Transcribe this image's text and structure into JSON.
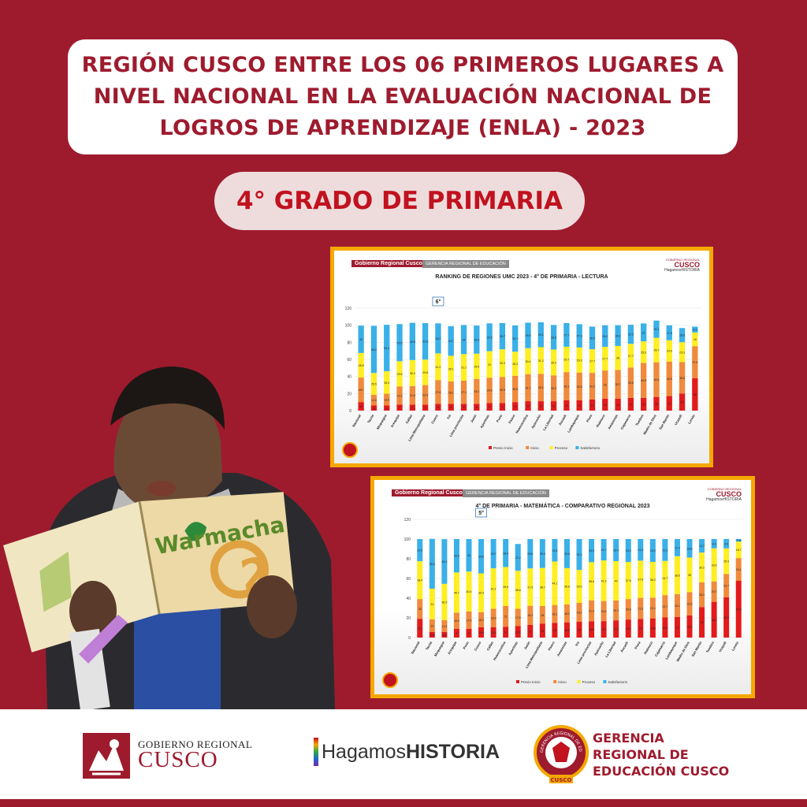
{
  "title": {
    "line1": "REGIÓN CUSCO ENTRE LOS 06 PRIMEROS LUGARES A",
    "line2": "NIVEL NACIONAL EN LA EVALUACIÓN NACIONAL DE",
    "line3": "LOGROS DE APRENDIZAJE   (ENLA) - 2023"
  },
  "grade": "4° GRADO DE PRIMARIA",
  "photo": {
    "book_title": "Warmacha",
    "book_number": "2"
  },
  "colors": {
    "brand_red": "#9e1b2e",
    "accent_orange": "#f5a800",
    "previo": "#e21b1b",
    "inicio": "#f08a3c",
    "proceso": "#ffee22",
    "satisfactorio": "#3ab0e8"
  },
  "chart_data": [
    {
      "type": "bar",
      "stacked": true,
      "header_org": "Gobierno Regional Cusco",
      "header_dept": "GERENCIA REGIONAL DE EDUCACIÓN",
      "logo": {
        "small": "GOBIERNO REGIONAL",
        "big": "CUSCO",
        "tag": "HagamosHISTORIA"
      },
      "title": "RANKING DE REGIONES UMC 2023 - 4° DE PRIMARIA - LECTURA",
      "rank_label": "6°",
      "rank_index": 6,
      "ylim": [
        0,
        120
      ],
      "yticks": [
        "0",
        "20",
        "40",
        "60",
        "80",
        "100",
        "120"
      ],
      "legend": [
        "Previo Inicio",
        "Inicio",
        "Proceso",
        "Satisfactorio"
      ],
      "categories": [
        "Nacional",
        "Tacna",
        "Moquegua",
        "Arequipa",
        "Callao",
        "Lima Metropolitana",
        "Cusco",
        "Ica",
        "Lima provincias",
        "Junín",
        "Apurímac",
        "Puno",
        "Pasco",
        "Huancavelica",
        "Ayacucho",
        "La Libertad",
        "Áncash",
        "Lambayeque",
        "Piura",
        "Huánuco",
        "Amazonas",
        "Cajamarca",
        "Tumbes",
        "Madre de Dios",
        "San Martín",
        "Ucayali",
        "Loreto"
      ],
      "series": [
        {
          "name": "Previo Inicio",
          "values": [
            10,
            6,
            6,
            7,
            7,
            7,
            8,
            8,
            8,
            8,
            9,
            9,
            10,
            11,
            11,
            11,
            12,
            12,
            13,
            14,
            14,
            15,
            15,
            16,
            17,
            20,
            38
          ]
        },
        {
          "name": "Inicio",
          "values": [
            28.7,
            12.6,
            13.8,
            21.2,
            21.8,
            22.9,
            27.8,
            26.1,
            27.1,
            29.1,
            29.6,
            30.5,
            30.8,
            31.7,
            32.1,
            30.3,
            33.1,
            32.6,
            31.2,
            33,
            33.7,
            35.5,
            40.8,
            40.6,
            40.5,
            36.8,
            37.5
          ]
        },
        {
          "name": "Proceso",
          "values": [
            28.8,
            25.5,
            26.3,
            29.6,
            30.4,
            29.8,
            31.2,
            30.1,
            31.1,
            29.6,
            31,
            32.3,
            28.2,
            30.4,
            31.2,
            30.2,
            29.7,
            29.3,
            27.7,
            27.7,
            28,
            27.7,
            25.3,
            28.7,
            24.9,
            23.3,
            16
          ]
        },
        {
          "name": "Satisfactorio",
          "values": [
            32,
            55.2,
            54.4,
            43.5,
            43.6,
            42.8,
            35.2,
            34.7,
            34,
            32.9,
            32.6,
            30.7,
            30.7,
            29.9,
            29.1,
            28.8,
            27.7,
            27.3,
            26.5,
            25.2,
            24.3,
            22.3,
            21,
            20.1,
            17.5,
            16.6,
            6.9
          ]
        }
      ]
    },
    {
      "type": "bar",
      "stacked": true,
      "header_org": "Gobierno Regional Cusco",
      "header_dept": "GERENCIA REGIONAL DE EDUCACIÓN",
      "logo": {
        "small": "GOBIERNO REGIONAL",
        "big": "CUSCO",
        "tag": "HagamosHISTORIA"
      },
      "title": "4° DE PRIMARIA - MATEMÁTICA - COMPARATIVO REGIONAL 2023",
      "rank_label": "5°",
      "rank_index": 5,
      "ylim": [
        0,
        120
      ],
      "yticks": [
        "0",
        "20",
        "40",
        "60",
        "80",
        "100",
        "120"
      ],
      "legend": [
        "Previo Inicio",
        "Inicio",
        "Proceso",
        "Satisfactorio"
      ],
      "categories": [
        "Nacional",
        "Tacna",
        "Moquegua",
        "Arequipa",
        "Puno",
        "Cusco",
        "Callao",
        "Huancavelica",
        "Apurímac",
        "Junín",
        "Lima Metropolitana",
        "Pasco",
        "Amazonas",
        "Ica",
        "Lima provincias",
        "Ayacucho",
        "La Libertad",
        "Áncash",
        "Piura",
        "Huánuco",
        "Cajamarca",
        "Lambayeque",
        "Madre de Dios",
        "San Martín",
        "Tumbes",
        "Ucayali",
        "Loreto"
      ],
      "series": [
        {
          "name": "Previo Inicio",
          "values": [
            19.1,
            5.6,
            5.8,
            9,
            9,
            10.6,
            10.6,
            11,
            11.6,
            13,
            14,
            15,
            15.5,
            16,
            16.6,
            16.7,
            17.5,
            18.3,
            19,
            19.5,
            20.4,
            21,
            22.6,
            31,
            36.3,
            40.9,
            57.6
          ]
        },
        {
          "name": "Inicio",
          "values": [
            20,
            13,
            11.9,
            16.4,
            17.6,
            15.2,
            18.6,
            21,
            17.6,
            19.3,
            18,
            18.1,
            18.2,
            19.2,
            21.3,
            20.4,
            20.1,
            20.8,
            21.3,
            21.1,
            22.7,
            23.1,
            23.6,
            25.1,
            20.7,
            23.7,
            23.1
          ]
        },
        {
          "name": "Proceso",
          "values": [
            38.4,
            31,
            36.9,
            40.7,
            40.4,
            39.4,
            41.1,
            39.6,
            38.6,
            37.9,
            38.7,
            44.1,
            36.8,
            33.5,
            38.6,
            41.2,
            40,
            37.6,
            37.8,
            36.2,
            34.7,
            38.5,
            35,
            30.2,
            33.6,
            25.9,
            16.7
          ]
        },
        {
          "name": "Satisfactorio",
          "values": [
            22.5,
            50.6,
            45.3,
            33.9,
            33,
            34.8,
            29.7,
            28.4,
            27.2,
            29.8,
            29.3,
            22.8,
            29.5,
            31.3,
            23.5,
            21.7,
            22.4,
            23.3,
            21.9,
            23.2,
            22.2,
            17.4,
            18.8,
            13.7,
            9.4,
            9.5,
            2.6
          ]
        }
      ]
    }
  ],
  "footer": {
    "gob_small": "GOBIERNO REGIONAL",
    "gob_big": "CUSCO",
    "hagamos_1": "Hagamos",
    "hagamos_2": "HISTORIA",
    "seal_top": "GERENCIA REGIONAL DE EDUCACIÓN",
    "seal_bottom": "CUSCO",
    "gerencia_1": "GERENCIA",
    "gerencia_2": "REGIONAL DE",
    "gerencia_3": "EDUCACIÓN CUSCO"
  }
}
